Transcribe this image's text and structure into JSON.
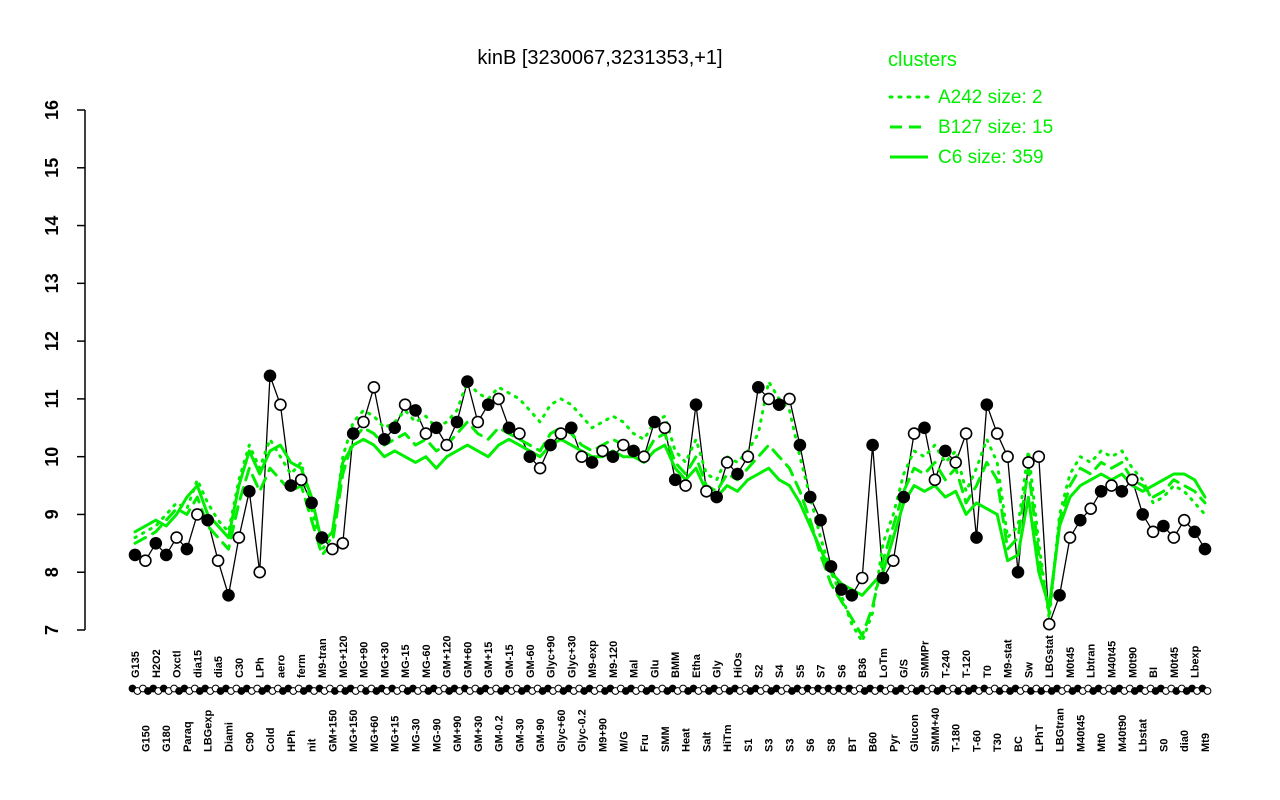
{
  "title": "kinB [3230067,3231353,+1]",
  "legend": {
    "title": "clusters",
    "items": [
      {
        "label": "A242 size: 2",
        "line_style": "dotted"
      },
      {
        "label": "B127 size: 15",
        "line_style": "dashed"
      },
      {
        "label": "C6 size: 359",
        "line_style": "solid"
      }
    ]
  },
  "colors": {
    "cluster_green": "#00ee00",
    "points_black": "#000000",
    "background": "#ffffff"
  },
  "chart_data": {
    "type": "line",
    "title": "kinB [3230067,3231353,+1]",
    "xlabel": "",
    "ylabel": "",
    "ylim": [
      7,
      16
    ],
    "yticks": [
      7,
      8,
      9,
      10,
      11,
      12,
      13,
      14,
      15,
      16
    ],
    "grid": false,
    "legend_position": "top-right",
    "categories": [
      "G135",
      "G150",
      "H2O2",
      "G180",
      "Oxctl",
      "Paraq",
      "dia15",
      "LBGexp",
      "dia5",
      "Diami",
      "C30",
      "C90",
      "LPh",
      "Cold",
      "aero",
      "HPh",
      "ferm",
      "nit",
      "M9-tran",
      "GM+150",
      "MG+120",
      "MG+150",
      "MG+90",
      "MG+60",
      "MG+30",
      "MG+15",
      "MG-15",
      "MG-30",
      "MG-60",
      "MG-90",
      "GM+120",
      "GM+90",
      "GM+60",
      "GM+30",
      "GM+15",
      "GM-0.2",
      "GM-15",
      "GM-30",
      "GM-60",
      "GM-90",
      "Glyc+90",
      "Glyc+60",
      "Glyc+30",
      "Glyc-0.2",
      "M9-exp",
      "M9+90",
      "M9-120",
      "M/G",
      "Mal",
      "Fru",
      "Glu",
      "SMM",
      "BMM",
      "Heat",
      "Etha",
      "Salt",
      "Gly",
      "HiTm",
      "HiOs",
      "S1",
      "S2",
      "S3",
      "S4",
      "S3",
      "S5",
      "S6",
      "S7",
      "S8",
      "S6",
      "BT",
      "B36",
      "B60",
      "LoTm",
      "Pyr",
      "G/S",
      "Glucon",
      "SMMPr",
      "SMM+40",
      "T-240",
      "T-180",
      "T-120",
      "T-60",
      "T0",
      "T30",
      "M9-stat",
      "BC",
      "Sw",
      "LPhT",
      "LBGstat",
      "LBGtran",
      "M0t45",
      "M40t45",
      "Lbtran",
      "Mt0",
      "M40t45",
      "M40t90",
      "M0t90",
      "Lbstat",
      "BI",
      "S0",
      "M0t45",
      "dia0",
      "Lbexp",
      "Mt9"
    ],
    "black_series": {
      "name": "kinB samples",
      "values": [
        8.3,
        8.2,
        8.5,
        8.3,
        8.6,
        8.4,
        9.0,
        8.9,
        8.2,
        7.6,
        8.6,
        9.4,
        8.0,
        11.4,
        10.9,
        9.5,
        9.6,
        9.2,
        8.6,
        8.4,
        8.5,
        10.4,
        10.6,
        11.2,
        10.3,
        10.5,
        10.9,
        10.8,
        10.4,
        10.5,
        10.2,
        10.6,
        11.3,
        10.6,
        10.9,
        11.0,
        10.5,
        10.4,
        10.0,
        9.8,
        10.2,
        10.4,
        10.5,
        10.0,
        9.9,
        10.1,
        10.0,
        10.2,
        10.1,
        10.0,
        10.6,
        10.5,
        9.6,
        9.5,
        10.9,
        9.4,
        9.3,
        9.9,
        9.7,
        10.0,
        11.2,
        11.0,
        10.9,
        11.0,
        10.2,
        9.3,
        8.9,
        8.1,
        7.7,
        7.6,
        7.9,
        10.2,
        7.9,
        8.2,
        9.3,
        10.4,
        10.5,
        9.6,
        10.1,
        9.9,
        10.4,
        8.6,
        10.9,
        10.4,
        10.0,
        8.0,
        9.9,
        10.0,
        7.1,
        7.6,
        8.6,
        8.9,
        9.1,
        9.4,
        9.5,
        9.4,
        9.6,
        9.0,
        8.7,
        8.8,
        8.6,
        8.9,
        8.7,
        8.4
      ],
      "filled": [
        1,
        0,
        1,
        1,
        0,
        1,
        0,
        1,
        0,
        1,
        0,
        1,
        0,
        1,
        0,
        1,
        0,
        1,
        1,
        0,
        0,
        1,
        0,
        0,
        1,
        1,
        0,
        1,
        0,
        1,
        0,
        1,
        1,
        0,
        1,
        0,
        1,
        0,
        1,
        0,
        1,
        0,
        1,
        0,
        1,
        0,
        1,
        0,
        1,
        0,
        1,
        0,
        1,
        0,
        1,
        0,
        1,
        0,
        1,
        0,
        1,
        0,
        1,
        0,
        1,
        1,
        1,
        1,
        1,
        1,
        0,
        1,
        1,
        0,
        1,
        0,
        1,
        0,
        1,
        0,
        0,
        1,
        1,
        0,
        0,
        1,
        0,
        0,
        0,
        1,
        0,
        1,
        0,
        1,
        0,
        1,
        0,
        1,
        0,
        1,
        0,
        0,
        1,
        1
      ]
    },
    "series": [
      {
        "name": "A242",
        "size": 2,
        "style": "dotted",
        "values": [
          8.6,
          8.7,
          8.8,
          9.0,
          9.2,
          9.1,
          9.6,
          9.2,
          8.9,
          8.7,
          9.6,
          10.2,
          9.8,
          10.3,
          10.0,
          9.7,
          9.9,
          9.1,
          8.4,
          8.6,
          10.0,
          10.6,
          10.8,
          10.7,
          10.5,
          10.6,
          10.8,
          10.6,
          10.7,
          10.5,
          10.6,
          10.8,
          11.3,
          11.1,
          11.0,
          11.2,
          11.1,
          11.0,
          10.8,
          10.6,
          10.9,
          11.0,
          10.9,
          10.7,
          10.5,
          10.6,
          10.7,
          10.6,
          10.4,
          10.3,
          10.6,
          10.7,
          10.1,
          9.9,
          10.3,
          9.7,
          9.6,
          10.0,
          9.9,
          10.1,
          10.4,
          11.3,
          11.0,
          10.8,
          10.0,
          9.3,
          8.6,
          8.0,
          7.6,
          7.1,
          6.8,
          7.3,
          8.5,
          9.0,
          9.7,
          10.1,
          10.0,
          10.2,
          9.9,
          10.1,
          9.4,
          9.8,
          10.3,
          9.9,
          8.6,
          8.8,
          10.1,
          8.5,
          7.2,
          9.0,
          9.7,
          10.0,
          9.9,
          10.1,
          10.0,
          10.1,
          9.8,
          9.6,
          9.2,
          9.3,
          9.5,
          9.4,
          9.2,
          9.0
        ]
      },
      {
        "name": "B127",
        "size": 15,
        "style": "dashed",
        "values": [
          8.5,
          8.6,
          8.7,
          8.9,
          9.1,
          9.0,
          9.3,
          8.8,
          8.6,
          8.4,
          9.2,
          9.8,
          9.4,
          9.8,
          9.6,
          9.4,
          9.5,
          8.9,
          8.3,
          8.5,
          9.7,
          10.3,
          10.5,
          10.4,
          10.2,
          10.3,
          10.4,
          10.2,
          10.3,
          10.1,
          10.2,
          10.4,
          10.6,
          10.4,
          10.3,
          10.5,
          10.4,
          10.3,
          10.2,
          10.1,
          10.4,
          10.5,
          10.4,
          10.2,
          10.1,
          10.2,
          10.3,
          10.2,
          10.1,
          10.0,
          10.3,
          10.4,
          9.9,
          9.7,
          10.0,
          9.5,
          9.4,
          9.7,
          9.6,
          9.8,
          10.0,
          10.2,
          10.0,
          9.8,
          9.4,
          8.9,
          8.3,
          7.8,
          7.5,
          7.2,
          6.9,
          7.4,
          8.2,
          8.8,
          9.4,
          9.8,
          9.7,
          9.9,
          9.6,
          9.8,
          9.2,
          9.5,
          9.9,
          9.6,
          8.4,
          8.6,
          9.8,
          8.3,
          7.3,
          8.9,
          9.5,
          9.8,
          9.7,
          9.9,
          9.8,
          9.9,
          9.6,
          9.5,
          9.3,
          9.4,
          9.6,
          9.5,
          9.4,
          9.2
        ]
      },
      {
        "name": "C6",
        "size": 359,
        "style": "solid",
        "values": [
          8.7,
          8.8,
          8.9,
          8.8,
          9.0,
          9.3,
          9.5,
          9.0,
          8.8,
          8.6,
          9.5,
          10.1,
          9.7,
          10.1,
          10.2,
          9.9,
          9.8,
          9.3,
          8.5,
          8.7,
          9.9,
          10.2,
          10.3,
          10.2,
          10.0,
          10.1,
          10.0,
          9.9,
          10.0,
          9.8,
          10.0,
          10.1,
          10.2,
          10.1,
          10.0,
          10.2,
          10.3,
          10.2,
          10.1,
          10.0,
          10.2,
          10.3,
          10.2,
          10.1,
          10.0,
          10.0,
          10.1,
          10.0,
          10.0,
          9.9,
          10.1,
          10.2,
          9.8,
          9.6,
          9.8,
          9.4,
          9.3,
          9.5,
          9.4,
          9.6,
          9.7,
          9.8,
          9.6,
          9.5,
          9.2,
          8.8,
          8.4,
          8.0,
          7.8,
          7.7,
          7.6,
          7.8,
          8.0,
          8.6,
          9.2,
          9.5,
          9.4,
          9.5,
          9.3,
          9.4,
          9.0,
          9.2,
          9.1,
          9.0,
          8.2,
          8.3,
          9.3,
          8.0,
          7.4,
          8.8,
          9.3,
          9.5,
          9.6,
          9.7,
          9.6,
          9.7,
          9.5,
          9.4,
          9.5,
          9.6,
          9.7,
          9.7,
          9.6,
          9.3
        ]
      }
    ]
  }
}
